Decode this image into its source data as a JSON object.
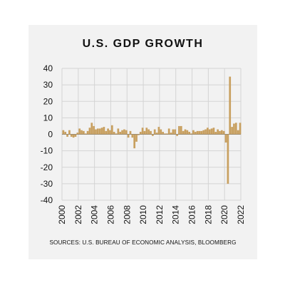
{
  "colors": {
    "panel": "#f2f2f2",
    "bars": "#c8a060",
    "grid": "#d4d4d4",
    "zero_line": "#7a7a7a",
    "text": "#111111"
  },
  "chart_data": {
    "type": "bar",
    "title": "U.S. GDP GROWTH",
    "xlabel": "",
    "ylabel": "",
    "ylim": [
      -40,
      40
    ],
    "yticks": [
      -40,
      -30,
      -20,
      -10,
      0,
      10,
      20,
      30,
      40
    ],
    "xlim": [
      2000,
      2022
    ],
    "xticks": [
      "2000",
      "2002",
      "2004",
      "2006",
      "2008",
      "2010",
      "2012",
      "2014",
      "2016",
      "2018",
      "2020",
      "2022"
    ],
    "grid": true,
    "source": "SOURCES: U.S. BUREAU OF ECONOMIC ANALYSIS, BLOOMBERG",
    "x": [
      2000.0,
      2000.25,
      2000.5,
      2000.75,
      2001.0,
      2001.25,
      2001.5,
      2001.75,
      2002.0,
      2002.25,
      2002.5,
      2002.75,
      2003.0,
      2003.25,
      2003.5,
      2003.75,
      2004.0,
      2004.25,
      2004.5,
      2004.75,
      2005.0,
      2005.25,
      2005.5,
      2005.75,
      2006.0,
      2006.25,
      2006.5,
      2006.75,
      2007.0,
      2007.25,
      2007.5,
      2007.75,
      2008.0,
      2008.25,
      2008.5,
      2008.75,
      2009.0,
      2009.25,
      2009.5,
      2009.75,
      2010.0,
      2010.25,
      2010.5,
      2010.75,
      2011.0,
      2011.25,
      2011.5,
      2011.75,
      2012.0,
      2012.25,
      2012.5,
      2012.75,
      2013.0,
      2013.25,
      2013.5,
      2013.75,
      2014.0,
      2014.25,
      2014.5,
      2014.75,
      2015.0,
      2015.25,
      2015.5,
      2015.75,
      2016.0,
      2016.25,
      2016.5,
      2016.75,
      2017.0,
      2017.25,
      2017.5,
      2017.75,
      2018.0,
      2018.25,
      2018.5,
      2018.75,
      2019.0,
      2019.25,
      2019.5,
      2019.75,
      2020.0,
      2020.25,
      2020.5,
      2020.75,
      2021.0,
      2021.25,
      2021.5,
      2021.75
    ],
    "values": [
      2.5,
      1.5,
      -1.5,
      2.5,
      -1.5,
      -2,
      -1.5,
      1,
      3.5,
      2.5,
      2,
      0.5,
      2,
      4,
      7,
      5,
      3,
      3.5,
      3.5,
      4,
      4.5,
      2,
      3.5,
      2.5,
      5.5,
      1.5,
      0.5,
      3.5,
      1.5,
      2.5,
      3,
      2.5,
      -2,
      2,
      -2,
      -8.5,
      -4.5,
      -0.5,
      1.5,
      4,
      2,
      4,
      3,
      2,
      -1,
      3,
      1,
      4.5,
      3,
      1.5,
      0.5,
      0.5,
      3.5,
      1,
      3,
      3,
      -1,
      5,
      5,
      2,
      3,
      2.5,
      1.5,
      0.5,
      2.5,
      1.5,
      2,
      2,
      2,
      2.5,
      3,
      4,
      3,
      3.5,
      4,
      1.5,
      3,
      2,
      2.5,
      2,
      -5,
      -30,
      35,
      4.5,
      6.5,
      7,
      2.5,
      7
    ]
  }
}
